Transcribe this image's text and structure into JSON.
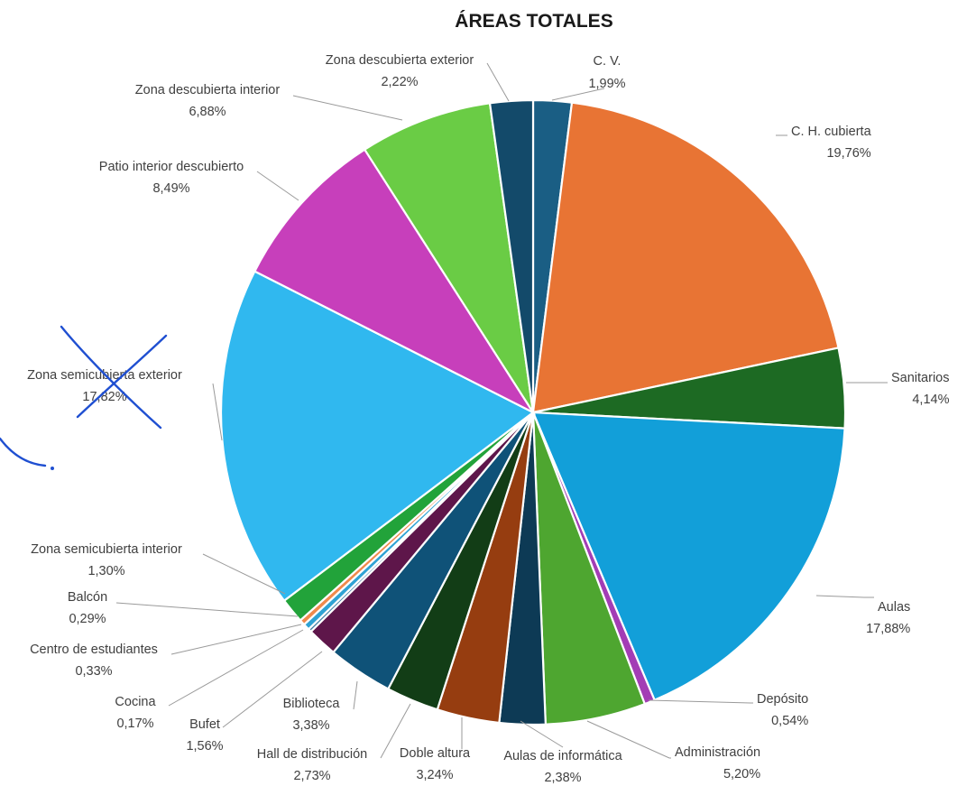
{
  "chart_data": {
    "type": "pie",
    "title": "ÁREAS TOTALES",
    "slices": [
      {
        "label": "C. V.",
        "value": 1.99,
        "value_label": "1,99%",
        "color": "#1a5e84"
      },
      {
        "label": "C. H. cubierta",
        "value": 19.76,
        "value_label": "19,76%",
        "color": "#e87434"
      },
      {
        "label": "Sanitarios",
        "value": 4.14,
        "value_label": "4,14%",
        "color": "#1d6a23"
      },
      {
        "label": "Aulas",
        "value": 17.88,
        "value_label": "17,88%",
        "color": "#129fd9"
      },
      {
        "label": "Depósito",
        "value": 0.54,
        "value_label": "0,54%",
        "color": "#a33db5"
      },
      {
        "label": "Administración",
        "value": 5.2,
        "value_label": "5,20%",
        "color": "#4ea630"
      },
      {
        "label": "Aulas de informática",
        "value": 2.38,
        "value_label": "2,38%",
        "color": "#0d3a55"
      },
      {
        "label": "Doble altura",
        "value": 3.24,
        "value_label": "3,24%",
        "color": "#963d10"
      },
      {
        "label": "Hall de distribución",
        "value": 2.73,
        "value_label": "2,73%",
        "color": "#123d16"
      },
      {
        "label": "Biblioteca",
        "value": 3.38,
        "value_label": "3,38%",
        "color": "#0f5278"
      },
      {
        "label": "Bufet",
        "value": 1.56,
        "value_label": "1,56%",
        "color": "#5e164a"
      },
      {
        "label": "Cocina",
        "value": 0.17,
        "value_label": "0,17%",
        "color": "#3e7ea4"
      },
      {
        "label": "Centro de estudiantes",
        "value": 0.33,
        "value_label": "0,33%",
        "color": "#2fa3d4"
      },
      {
        "label": "Balcón",
        "value": 0.29,
        "value_label": "0,29%",
        "color": "#f08a4c"
      },
      {
        "label": "Zona semicubierta interior",
        "value": 1.3,
        "value_label": "1,30%",
        "color": "#22a33a"
      },
      {
        "label": "Zona semicubierta exterior",
        "value": 17.82,
        "value_label": "17,82%",
        "color": "#30b8ef"
      },
      {
        "label": "Patio interior descubierto",
        "value": 8.49,
        "value_label": "8,49%",
        "color": "#c73fbb"
      },
      {
        "label": "Zona descubierta interior",
        "value": 6.88,
        "value_label": "6,88%",
        "color": "#6acc45"
      },
      {
        "label": "Zona descubierta exterior",
        "value": 2.22,
        "value_label": "2,22%",
        "color": "#134a6a"
      }
    ]
  }
}
